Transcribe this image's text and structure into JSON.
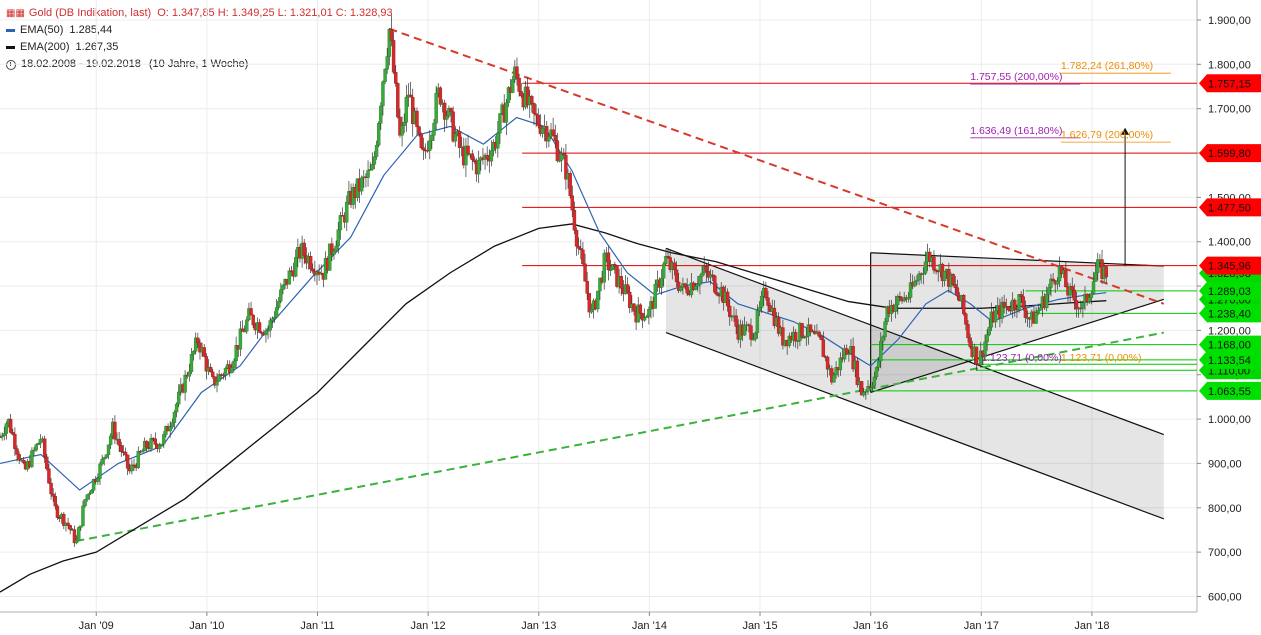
{
  "legend": {
    "title": "Gold (DB Indikation, last)",
    "ohlc": "O: 1.347,85  H: 1.349,25  L: 1.321,01  C: 1.328,93",
    "ema50_label": "EMA(50)",
    "ema50_value": "1.285,44",
    "ema200_label": "EMA(200)",
    "ema200_value": "1.267,35",
    "period": "18.02.2008 - 19.02.2018",
    "period_detail": "(10 Jahre, 1 Woche)",
    "icon": "candlestick-icon",
    "period_icon": "clock-icon"
  },
  "colors": {
    "up": "#3aa83a",
    "down": "#d42a2a",
    "ema50": "#2d63b4",
    "ema200": "#111111",
    "resistance": "#e00000",
    "support": "#00c800",
    "fib_purple": "#a020b0",
    "fib_orange": "#f08c00"
  },
  "chart_data": {
    "type": "candlestick",
    "title": "Gold (DB Indikation, last)",
    "xlabel": "",
    "ylabel": "",
    "ylim": [
      565,
      1945
    ],
    "x_ticks": [
      {
        "label": "Jan '09",
        "date": 2009.0
      },
      {
        "label": "Jan '10",
        "date": 2010.0
      },
      {
        "label": "Jan '11",
        "date": 2011.0
      },
      {
        "label": "Jan '12",
        "date": 2012.0
      },
      {
        "label": "Jan '13",
        "date": 2013.0
      },
      {
        "label": "Jan '14",
        "date": 2014.0
      },
      {
        "label": "Jan '15",
        "date": 2015.0
      },
      {
        "label": "Jan '16",
        "date": 2016.0
      },
      {
        "label": "Jan '17",
        "date": 2017.0
      },
      {
        "label": "Jan '18",
        "date": 2018.0
      }
    ],
    "y_ticks": [
      {
        "label": "600,00",
        "value": 600
      },
      {
        "label": "700,00",
        "value": 700
      },
      {
        "label": "800,00",
        "value": 800
      },
      {
        "label": "900,00",
        "value": 900
      },
      {
        "label": "1.000,00",
        "value": 1000
      },
      {
        "label": "1.100,00",
        "value": 1100
      },
      {
        "label": "1.200,00",
        "value": 1200
      },
      {
        "label": "1.300,00",
        "value": 1300
      },
      {
        "label": "1.400,00",
        "value": 1400
      },
      {
        "label": "1.500,00",
        "value": 1500
      },
      {
        "label": "1.600,00",
        "value": 1600
      },
      {
        "label": "1.700,00",
        "value": 1700
      },
      {
        "label": "1.800,00",
        "value": 1800
      },
      {
        "label": "1.900,00",
        "value": 1900
      }
    ],
    "price_path": [
      [
        2008.13,
        960
      ],
      [
        2008.2,
        1000
      ],
      [
        2008.35,
        880
      ],
      [
        2008.5,
        960
      ],
      [
        2008.62,
        800
      ],
      [
        2008.75,
        760
      ],
      [
        2008.82,
        720
      ],
      [
        2008.9,
        820
      ],
      [
        2009.05,
        900
      ],
      [
        2009.15,
        980
      ],
      [
        2009.3,
        880
      ],
      [
        2009.45,
        940
      ],
      [
        2009.6,
        950
      ],
      [
        2009.75,
        1050
      ],
      [
        2009.92,
        1180
      ],
      [
        2010.05,
        1080
      ],
      [
        2010.2,
        1120
      ],
      [
        2010.38,
        1230
      ],
      [
        2010.55,
        1200
      ],
      [
        2010.7,
        1300
      ],
      [
        2010.85,
        1380
      ],
      [
        2011.05,
        1330
      ],
      [
        2011.3,
        1500
      ],
      [
        2011.5,
        1560
      ],
      [
        2011.6,
        1790
      ],
      [
        2011.65,
        1880
      ],
      [
        2011.75,
        1620
      ],
      [
        2011.82,
        1740
      ],
      [
        2011.95,
        1580
      ],
      [
        2012.1,
        1740
      ],
      [
        2012.3,
        1600
      ],
      [
        2012.45,
        1570
      ],
      [
        2012.6,
        1620
      ],
      [
        2012.78,
        1780
      ],
      [
        2012.95,
        1680
      ],
      [
        2013.1,
        1650
      ],
      [
        2013.25,
        1560
      ],
      [
        2013.35,
        1400
      ],
      [
        2013.48,
        1230
      ],
      [
        2013.6,
        1360
      ],
      [
        2013.75,
        1300
      ],
      [
        2013.88,
        1240
      ],
      [
        2014.0,
        1240
      ],
      [
        2014.15,
        1360
      ],
      [
        2014.3,
        1290
      ],
      [
        2014.5,
        1330
      ],
      [
        2014.65,
        1290
      ],
      [
        2014.8,
        1200
      ],
      [
        2014.95,
        1200
      ],
      [
        2015.05,
        1290
      ],
      [
        2015.2,
        1180
      ],
      [
        2015.4,
        1200
      ],
      [
        2015.55,
        1170
      ],
      [
        2015.65,
        1090
      ],
      [
        2015.8,
        1170
      ],
      [
        2015.92,
        1060
      ],
      [
        2016.05,
        1100
      ],
      [
        2016.15,
        1250
      ],
      [
        2016.35,
        1280
      ],
      [
        2016.52,
        1370
      ],
      [
        2016.7,
        1320
      ],
      [
        2016.82,
        1260
      ],
      [
        2016.9,
        1170
      ],
      [
        2016.98,
        1130
      ],
      [
        2017.1,
        1230
      ],
      [
        2017.2,
        1250
      ],
      [
        2017.35,
        1270
      ],
      [
        2017.45,
        1220
      ],
      [
        2017.55,
        1260
      ],
      [
        2017.7,
        1340
      ],
      [
        2017.8,
        1280
      ],
      [
        2017.92,
        1250
      ],
      [
        2018.05,
        1340
      ],
      [
        2018.13,
        1329
      ]
    ],
    "ema50": [
      [
        2008.13,
        900
      ],
      [
        2008.5,
        920
      ],
      [
        2008.85,
        840
      ],
      [
        2009.2,
        900
      ],
      [
        2009.6,
        940
      ],
      [
        2009.95,
        1060
      ],
      [
        2010.3,
        1120
      ],
      [
        2010.6,
        1220
      ],
      [
        2010.95,
        1320
      ],
      [
        2011.3,
        1410
      ],
      [
        2011.6,
        1550
      ],
      [
        2011.9,
        1640
      ],
      [
        2012.2,
        1660
      ],
      [
        2012.5,
        1620
      ],
      [
        2012.8,
        1680
      ],
      [
        2013.05,
        1660
      ],
      [
        2013.3,
        1560
      ],
      [
        2013.55,
        1420
      ],
      [
        2013.8,
        1330
      ],
      [
        2014.05,
        1280
      ],
      [
        2014.3,
        1300
      ],
      [
        2014.55,
        1310
      ],
      [
        2014.8,
        1260
      ],
      [
        2015.05,
        1240
      ],
      [
        2015.3,
        1220
      ],
      [
        2015.55,
        1190
      ],
      [
        2015.8,
        1150
      ],
      [
        2016.0,
        1120
      ],
      [
        2016.25,
        1180
      ],
      [
        2016.5,
        1260
      ],
      [
        2016.7,
        1290
      ],
      [
        2016.9,
        1260
      ],
      [
        2017.1,
        1220
      ],
      [
        2017.4,
        1250
      ],
      [
        2017.7,
        1270
      ],
      [
        2017.95,
        1280
      ],
      [
        2018.13,
        1285
      ]
    ],
    "ema200": [
      [
        2008.13,
        610
      ],
      [
        2008.4,
        650
      ],
      [
        2008.7,
        680
      ],
      [
        2009.0,
        700
      ],
      [
        2009.4,
        760
      ],
      [
        2009.8,
        820
      ],
      [
        2010.2,
        900
      ],
      [
        2010.6,
        980
      ],
      [
        2011.0,
        1060
      ],
      [
        2011.4,
        1160
      ],
      [
        2011.8,
        1260
      ],
      [
        2012.2,
        1330
      ],
      [
        2012.6,
        1390
      ],
      [
        2013.0,
        1430
      ],
      [
        2013.3,
        1440
      ],
      [
        2013.6,
        1420
      ],
      [
        2013.9,
        1395
      ],
      [
        2014.2,
        1375
      ],
      [
        2014.6,
        1355
      ],
      [
        2015.0,
        1325
      ],
      [
        2015.4,
        1295
      ],
      [
        2015.8,
        1265
      ],
      [
        2016.2,
        1250
      ],
      [
        2016.6,
        1250
      ],
      [
        2017.0,
        1250
      ],
      [
        2017.4,
        1255
      ],
      [
        2017.8,
        1262
      ],
      [
        2018.13,
        1267
      ]
    ],
    "resistance_levels": [
      {
        "label": "1.757,15",
        "value": 1757.15
      },
      {
        "label": "1.599,80",
        "value": 1599.8
      },
      {
        "label": "1.477,50",
        "value": 1477.5
      },
      {
        "label": "1.345,96",
        "value": 1345.96
      }
    ],
    "support_levels": [
      {
        "label": "1.289,03",
        "value": 1289.03
      },
      {
        "label": "1.238,40",
        "value": 1238.4
      },
      {
        "label": "1.168,00",
        "value": 1168.0
      },
      {
        "label": "1.133,54",
        "value": 1133.54
      },
      {
        "label": "1.063,55",
        "value": 1063.55
      }
    ],
    "hidden_price_labels": [
      {
        "label": "1.328,93",
        "value": 1328.93
      },
      {
        "label": "1.270,00",
        "value": 1270.0
      },
      {
        "label": "1.110,00",
        "value": 1110.0
      }
    ],
    "fib_labels": [
      {
        "text": "1.782,24 (261,80%)",
        "value": 1782.24,
        "date": 2017.72,
        "color": "orange"
      },
      {
        "text": "1.757,55 (200,00%)",
        "value": 1757.55,
        "date": 2016.9,
        "color": "purple"
      },
      {
        "text": "1.636,49 (161,80%)",
        "value": 1636.49,
        "date": 2016.9,
        "color": "purple"
      },
      {
        "text": "1.626,79 (200,00%)",
        "value": 1626.79,
        "date": 2017.72,
        "color": "orange"
      },
      {
        "text": "1.123,71 (0,00%)",
        "value": 1123.71,
        "date": 2017.0,
        "color": "purple"
      },
      {
        "text": "1.123,71 (0,00%)",
        "value": 1123.71,
        "date": 2017.72,
        "color": "orange"
      }
    ],
    "downtrend_line": {
      "from": [
        2011.65,
        1880
      ],
      "to": [
        2018.65,
        1260
      ]
    },
    "uptrend_line": {
      "from": [
        2008.82,
        725
      ],
      "to": [
        2018.65,
        1195
      ]
    },
    "channel": {
      "upper": {
        "from": [
          2014.15,
          1385
        ],
        "to": [
          2018.65,
          965
        ]
      },
      "lower": {
        "from": [
          2014.15,
          1195
        ],
        "to": [
          2018.65,
          775
        ]
      }
    },
    "triangle": {
      "top": {
        "from": [
          2016.0,
          1375
        ],
        "to": [
          2018.65,
          1345
        ]
      },
      "bottom": {
        "from": [
          2016.0,
          1060
        ],
        "to": [
          2018.65,
          1270
        ]
      }
    },
    "target_arrow": {
      "date": 2018.3,
      "from": 1345,
      "to": 1657
    },
    "grid": true,
    "legend_position": "top-left"
  }
}
